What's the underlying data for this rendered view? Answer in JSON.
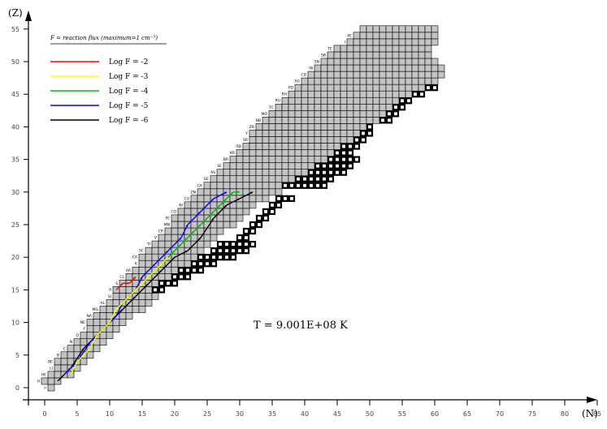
{
  "chart_data": {
    "type": "heatmap",
    "title": "",
    "xlabel": "(N)",
    "ylabel": "(Z)",
    "xlim": [
      0,
      85
    ],
    "ylim": [
      0,
      55
    ],
    "xticks": [
      0,
      5,
      10,
      15,
      20,
      25,
      30,
      35,
      40,
      45,
      50,
      55,
      60,
      65,
      70,
      75,
      80,
      85
    ],
    "yticks": [
      0,
      5,
      10,
      15,
      20,
      25,
      30,
      35,
      40,
      45,
      50,
      55
    ],
    "annotation": "T = 9.001E+08 K",
    "legend": {
      "title": "F = reaction flux (maximum=1 cm⁻³)",
      "placement": "top-left",
      "entries": [
        {
          "label": "Log F = -2",
          "color": "#ff0000"
        },
        {
          "label": "Log F = -3",
          "color": "#ffff00"
        },
        {
          "label": "Log F = -4",
          "color": "#00bb00"
        },
        {
          "label": "Log F = -5",
          "color": "#0000ff"
        },
        {
          "label": "Log F = -6",
          "color": "#000000"
        }
      ]
    },
    "network": {
      "stable_color": "#c4c4c4",
      "rows": [
        {
          "z": 0,
          "n": [
            1,
            1
          ]
        },
        {
          "z": 1,
          "n": [
            0,
            2
          ]
        },
        {
          "z": 2,
          "n": [
            1,
            4
          ]
        },
        {
          "z": 3,
          "n": [
            2,
            5
          ]
        },
        {
          "z": 4,
          "n": [
            2,
            6
          ]
        },
        {
          "z": 5,
          "n": [
            3,
            7
          ]
        },
        {
          "z": 6,
          "n": [
            4,
            8
          ]
        },
        {
          "z": 7,
          "n": [
            5,
            9
          ]
        },
        {
          "z": 8,
          "n": [
            6,
            10
          ]
        },
        {
          "z": 9,
          "n": [
            7,
            11
          ]
        },
        {
          "z": 10,
          "n": [
            7,
            12
          ]
        },
        {
          "z": 11,
          "n": [
            8,
            13
          ]
        },
        {
          "z": 12,
          "n": [
            9,
            15
          ]
        },
        {
          "z": 13,
          "n": [
            10,
            16
          ]
        },
        {
          "z": 14,
          "n": [
            11,
            17
          ]
        },
        {
          "z": 15,
          "n": [
            11,
            18
          ]
        },
        {
          "z": 16,
          "n": [
            12,
            19
          ]
        },
        {
          "z": 17,
          "n": [
            13,
            20
          ]
        },
        {
          "z": 18,
          "n": [
            14,
            21
          ]
        },
        {
          "z": 19,
          "n": [
            15,
            22
          ]
        },
        {
          "z": 20,
          "n": [
            15,
            23
          ]
        },
        {
          "z": 21,
          "n": [
            16,
            24
          ]
        },
        {
          "z": 22,
          "n": [
            17,
            25
          ]
        },
        {
          "z": 23,
          "n": [
            18,
            26
          ]
        },
        {
          "z": 24,
          "n": [
            19,
            27
          ]
        },
        {
          "z": 25,
          "n": [
            20,
            29
          ]
        },
        {
          "z": 26,
          "n": [
            20,
            30
          ]
        },
        {
          "z": 27,
          "n": [
            21,
            31
          ]
        },
        {
          "z": 28,
          "n": [
            22,
            32
          ]
        },
        {
          "z": 29,
          "n": [
            23,
            34
          ]
        },
        {
          "z": 30,
          "n": [
            24,
            36
          ]
        },
        {
          "z": 31,
          "n": [
            25,
            38
          ]
        },
        {
          "z": 32,
          "n": [
            26,
            40
          ]
        },
        {
          "z": 33,
          "n": [
            27,
            42
          ]
        },
        {
          "z": 34,
          "n": [
            28,
            44
          ]
        },
        {
          "z": 35,
          "n": [
            29,
            46
          ]
        },
        {
          "z": 36,
          "n": [
            30,
            47
          ]
        },
        {
          "z": 37,
          "n": [
            31,
            48
          ]
        },
        {
          "z": 38,
          "n": [
            32,
            48
          ]
        },
        {
          "z": 39,
          "n": [
            32,
            49
          ]
        },
        {
          "z": 40,
          "n": [
            33,
            50
          ]
        },
        {
          "z": 41,
          "n": [
            34,
            51
          ]
        },
        {
          "z": 42,
          "n": [
            35,
            52
          ]
        },
        {
          "z": 43,
          "n": [
            36,
            53
          ]
        },
        {
          "z": 44,
          "n": [
            37,
            55
          ]
        },
        {
          "z": 45,
          "n": [
            38,
            57
          ]
        },
        {
          "z": 46,
          "n": [
            39,
            59
          ]
        },
        {
          "z": 47,
          "n": [
            40,
            60
          ]
        },
        {
          "z": 48,
          "n": [
            41,
            61
          ]
        },
        {
          "z": 49,
          "n": [
            42,
            61
          ]
        },
        {
          "z": 50,
          "n": [
            43,
            60
          ]
        },
        {
          "z": 51,
          "n": [
            44,
            59
          ]
        },
        {
          "z": 52,
          "n": [
            45,
            59
          ]
        },
        {
          "z": 53,
          "n": [
            47,
            60
          ]
        },
        {
          "z": 54,
          "n": [
            48,
            60
          ]
        },
        {
          "z": 55,
          "n": [
            49,
            60
          ]
        }
      ],
      "unstable_cells": [
        [
          37,
          31
        ],
        [
          38,
          31
        ],
        [
          39,
          31
        ],
        [
          40,
          31
        ],
        [
          41,
          31
        ],
        [
          42,
          31
        ],
        [
          43,
          31
        ],
        [
          39,
          32
        ],
        [
          40,
          32
        ],
        [
          41,
          32
        ],
        [
          42,
          32
        ],
        [
          43,
          32
        ],
        [
          44,
          32
        ],
        [
          41,
          33
        ],
        [
          42,
          33
        ],
        [
          43,
          33
        ],
        [
          44,
          33
        ],
        [
          45,
          33
        ],
        [
          46,
          33
        ],
        [
          42,
          34
        ],
        [
          43,
          34
        ],
        [
          44,
          34
        ],
        [
          45,
          34
        ],
        [
          46,
          34
        ],
        [
          47,
          34
        ],
        [
          44,
          35
        ],
        [
          45,
          35
        ],
        [
          46,
          35
        ],
        [
          47,
          35
        ],
        [
          48,
          35
        ],
        [
          45,
          36
        ],
        [
          46,
          36
        ],
        [
          47,
          36
        ],
        [
          46,
          37
        ],
        [
          47,
          37
        ],
        [
          48,
          37
        ],
        [
          48,
          38
        ],
        [
          49,
          38
        ],
        [
          49,
          39
        ],
        [
          50,
          39
        ],
        [
          50,
          40
        ],
        [
          52,
          41
        ],
        [
          53,
          41
        ],
        [
          53,
          42
        ],
        [
          54,
          42
        ],
        [
          54,
          43
        ],
        [
          55,
          43
        ],
        [
          55,
          44
        ],
        [
          56,
          44
        ],
        [
          57,
          45
        ],
        [
          58,
          45
        ],
        [
          59,
          46
        ],
        [
          60,
          46
        ],
        [
          27,
          22
        ],
        [
          28,
          22
        ],
        [
          29,
          22
        ],
        [
          30,
          22
        ],
        [
          31,
          22
        ],
        [
          32,
          22
        ],
        [
          26,
          21
        ],
        [
          27,
          21
        ],
        [
          28,
          21
        ],
        [
          29,
          21
        ],
        [
          30,
          21
        ],
        [
          31,
          21
        ],
        [
          24,
          20
        ],
        [
          25,
          20
        ],
        [
          26,
          20
        ],
        [
          27,
          20
        ],
        [
          28,
          20
        ],
        [
          29,
          20
        ],
        [
          23,
          19
        ],
        [
          24,
          19
        ],
        [
          25,
          19
        ],
        [
          26,
          19
        ],
        [
          21,
          18
        ],
        [
          22,
          18
        ],
        [
          23,
          18
        ],
        [
          24,
          18
        ],
        [
          20,
          17
        ],
        [
          21,
          17
        ],
        [
          22,
          17
        ],
        [
          18,
          16
        ],
        [
          19,
          16
        ],
        [
          20,
          16
        ],
        [
          17,
          15
        ],
        [
          18,
          15
        ],
        [
          36,
          29
        ],
        [
          37,
          29
        ],
        [
          38,
          29
        ],
        [
          35,
          28
        ],
        [
          36,
          28
        ],
        [
          34,
          27
        ],
        [
          35,
          27
        ],
        [
          33,
          26
        ],
        [
          34,
          26
        ],
        [
          32,
          25
        ],
        [
          33,
          25
        ],
        [
          31,
          24
        ],
        [
          32,
          24
        ],
        [
          30,
          23
        ],
        [
          31,
          23
        ]
      ],
      "element_labels": [
        {
          "z": 0,
          "text": "n"
        },
        {
          "z": 1,
          "text": "H"
        },
        {
          "z": 2,
          "text": "HE"
        },
        {
          "z": 3,
          "text": "LI"
        },
        {
          "z": 4,
          "text": "BE"
        },
        {
          "z": 5,
          "text": "B"
        },
        {
          "z": 6,
          "text": "C"
        },
        {
          "z": 7,
          "text": "N"
        },
        {
          "z": 8,
          "text": "O"
        },
        {
          "z": 9,
          "text": "F"
        },
        {
          "z": 10,
          "text": "NE"
        },
        {
          "z": 11,
          "text": "NA"
        },
        {
          "z": 12,
          "text": "MG"
        },
        {
          "z": 13,
          "text": "AL"
        },
        {
          "z": 14,
          "text": "SI"
        },
        {
          "z": 15,
          "text": "P"
        },
        {
          "z": 16,
          "text": "S"
        },
        {
          "z": 17,
          "text": "CL"
        },
        {
          "z": 18,
          "text": "AR"
        },
        {
          "z": 19,
          "text": "K"
        },
        {
          "z": 20,
          "text": "CA"
        },
        {
          "z": 21,
          "text": "SC"
        },
        {
          "z": 22,
          "text": "TI"
        },
        {
          "z": 23,
          "text": "V"
        },
        {
          "z": 24,
          "text": "CR"
        },
        {
          "z": 25,
          "text": "MN"
        },
        {
          "z": 26,
          "text": "FE"
        },
        {
          "z": 27,
          "text": "CO"
        },
        {
          "z": 28,
          "text": "NI"
        },
        {
          "z": 29,
          "text": "CU"
        },
        {
          "z": 30,
          "text": "ZN"
        },
        {
          "z": 31,
          "text": "GA"
        },
        {
          "z": 32,
          "text": "GE"
        },
        {
          "z": 33,
          "text": "AS"
        },
        {
          "z": 34,
          "text": "SE"
        },
        {
          "z": 35,
          "text": "BR"
        },
        {
          "z": 36,
          "text": "KR"
        },
        {
          "z": 37,
          "text": "RB"
        },
        {
          "z": 38,
          "text": "SR"
        },
        {
          "z": 39,
          "text": "Y"
        },
        {
          "z": 40,
          "text": "ZR"
        },
        {
          "z": 41,
          "text": "NB"
        },
        {
          "z": 42,
          "text": "MO"
        },
        {
          "z": 43,
          "text": "TC"
        },
        {
          "z": 44,
          "text": "RU"
        },
        {
          "z": 45,
          "text": "RH"
        },
        {
          "z": 46,
          "text": "PD"
        },
        {
          "z": 47,
          "text": "AG"
        },
        {
          "z": 48,
          "text": "CD"
        },
        {
          "z": 49,
          "text": "IN"
        },
        {
          "z": 50,
          "text": "SN"
        },
        {
          "z": 51,
          "text": "SB"
        },
        {
          "z": 52,
          "text": "TE"
        },
        {
          "z": 53,
          "text": "I"
        },
        {
          "z": 54,
          "text": "XE"
        }
      ]
    },
    "flux_paths": [
      {
        "level": "-6",
        "color": "#000000",
        "points": [
          [
            2,
            1
          ],
          [
            4,
            3
          ],
          [
            6,
            6
          ],
          [
            8,
            8
          ],
          [
            10,
            10
          ],
          [
            12,
            12
          ],
          [
            14,
            14
          ],
          [
            16,
            16
          ],
          [
            18,
            18
          ],
          [
            20,
            20
          ],
          [
            22,
            21
          ],
          [
            24,
            23
          ],
          [
            26,
            26
          ],
          [
            28,
            28
          ],
          [
            30,
            29
          ],
          [
            32,
            30
          ]
        ]
      },
      {
        "level": "-5",
        "color": "#0000ff",
        "points": [
          [
            3,
            2
          ],
          [
            5,
            4
          ],
          [
            7,
            7
          ],
          [
            9,
            9
          ],
          [
            11,
            11
          ],
          [
            12,
            13
          ],
          [
            14,
            15
          ],
          [
            15,
            17
          ],
          [
            17,
            19
          ],
          [
            19,
            21
          ],
          [
            21,
            23
          ],
          [
            22,
            25
          ],
          [
            24,
            27
          ],
          [
            26,
            29
          ],
          [
            28,
            30
          ]
        ]
      },
      {
        "level": "-4",
        "color": "#00bb00",
        "points": [
          [
            16,
            17
          ],
          [
            18,
            19
          ],
          [
            19,
            20
          ],
          [
            20,
            21
          ],
          [
            21,
            22
          ],
          [
            22,
            23
          ],
          [
            23,
            24
          ],
          [
            24,
            25
          ],
          [
            25,
            26
          ],
          [
            26,
            27
          ],
          [
            27,
            28
          ],
          [
            28,
            29
          ],
          [
            29,
            30
          ],
          [
            30,
            30
          ]
        ]
      },
      {
        "level": "-3",
        "color": "#ffff00",
        "points": [
          [
            4,
            2
          ],
          [
            5,
            4
          ],
          [
            6,
            5
          ],
          [
            7,
            6
          ],
          [
            8,
            8
          ],
          [
            9,
            9
          ],
          [
            10,
            10
          ],
          [
            11,
            12
          ],
          [
            12,
            13
          ],
          [
            13,
            14
          ],
          [
            14,
            15
          ],
          [
            15,
            16
          ],
          [
            16,
            17
          ],
          [
            17,
            18
          ],
          [
            18,
            19
          ],
          [
            19,
            20
          ]
        ]
      },
      {
        "level": "-2",
        "color": "#ff0000",
        "points": [
          [
            11,
            15
          ],
          [
            12,
            16
          ],
          [
            13,
            16
          ],
          [
            14,
            17
          ]
        ]
      }
    ]
  }
}
